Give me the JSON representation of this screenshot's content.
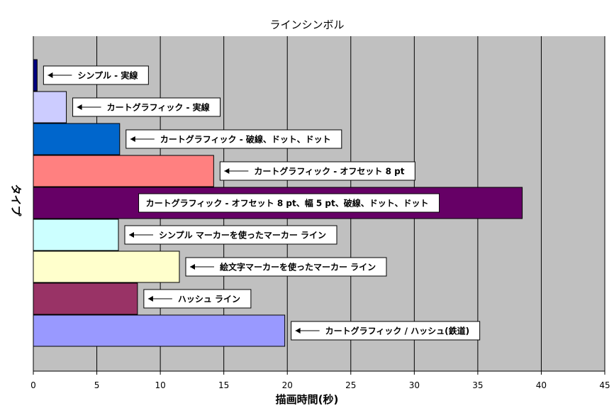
{
  "chart_data": {
    "type": "bar",
    "orientation": "horizontal",
    "title": "ラインシンボル",
    "xlabel": "描画時間(秒)",
    "ylabel": "タイプ",
    "xlim": [
      0,
      45
    ],
    "xticks": [
      0,
      5,
      10,
      15,
      20,
      25,
      30,
      35,
      40,
      45
    ],
    "grid": true,
    "bars": [
      {
        "label": "シンプル - 実線",
        "value": 0.3,
        "color": "#000080"
      },
      {
        "label": "カートグラフィック - 実線",
        "value": 2.6,
        "color": "#ccccff"
      },
      {
        "label": "カートグラフィック - 破線、ドット、ドット",
        "value": 6.8,
        "color": "#0066cc"
      },
      {
        "label": "カートグラフィック - オフセット 8 pt",
        "value": 14.2,
        "color": "#ff8080"
      },
      {
        "label": "カートグラフィック - オフセット 8 pt、幅 5 pt、破線、ドット、ドット",
        "value": 38.5,
        "color": "#660066"
      },
      {
        "label": "シンプル マーカーを使ったマーカー ライン",
        "value": 6.7,
        "color": "#ccffff"
      },
      {
        "label": "絵文字マーカーを使ったマーカー ライン",
        "value": 11.5,
        "color": "#ffffcc"
      },
      {
        "label": "ハッシュ ライン",
        "value": 8.2,
        "color": "#993366"
      },
      {
        "label": "カートグラフィック / ハッシュ(鉄道)",
        "value": 19.8,
        "color": "#9999ff"
      }
    ]
  },
  "colors": {
    "plot_background": "#c0c0c0",
    "gridline": "#000000"
  }
}
